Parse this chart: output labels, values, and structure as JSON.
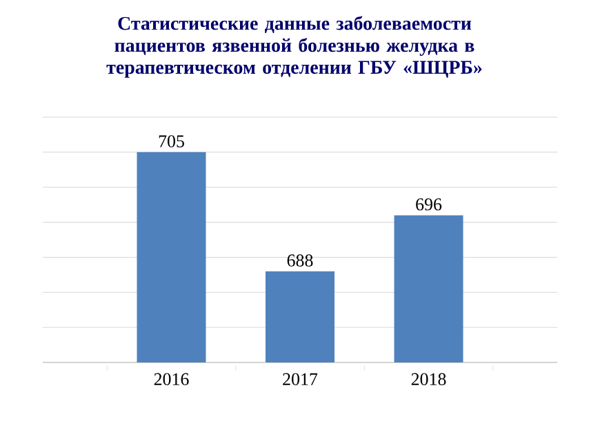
{
  "chart_data": {
    "type": "bar",
    "title": "Статистические данные заболеваемости пациентов язвенной болезнью желудка в терапевтическом отделении ГБУ «ШЦРБ»",
    "categories": [
      "2016",
      "2017",
      "2018"
    ],
    "values": [
      705,
      688,
      696
    ],
    "color": "#4f81bd",
    "ylim": [
      675,
      710
    ],
    "yticks": [
      {
        "value": 675,
        "label": null
      },
      {
        "value": 680,
        "label": null
      },
      {
        "value": 685,
        "label": null
      },
      {
        "value": 690,
        "label": null
      },
      {
        "value": 695,
        "label": null
      },
      {
        "value": 700,
        "label": null
      },
      {
        "value": 705,
        "label": null
      },
      {
        "value": 710,
        "label": null
      }
    ],
    "tick_labels": "x",
    "grid": "y",
    "data_labels": true
  }
}
